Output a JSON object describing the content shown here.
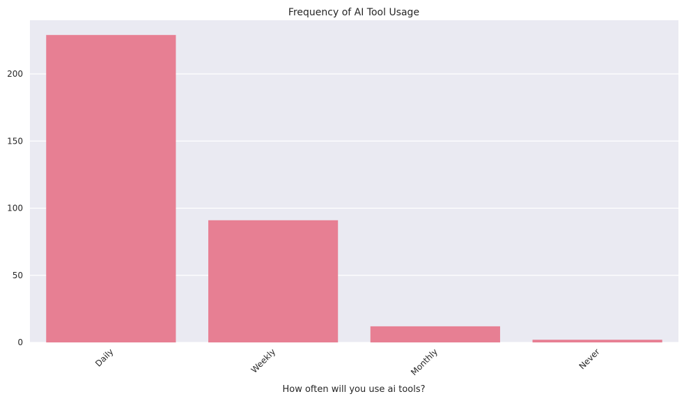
{
  "chart_data": {
    "type": "bar",
    "title": "Frequency of AI Tool Usage",
    "xlabel": "How often will you use ai tools?",
    "ylabel": "",
    "categories": [
      "Daily",
      "Weekly",
      "Monthly",
      "Never"
    ],
    "values": [
      229,
      91,
      12,
      2
    ],
    "ylim": [
      0,
      240
    ],
    "yticks": [
      0,
      50,
      100,
      150,
      200
    ],
    "grid": true,
    "bar_color": "#e77f93",
    "background_color": "#eaeaf2",
    "grid_color": "#ffffff",
    "xtick_rotation_deg": 45
  }
}
